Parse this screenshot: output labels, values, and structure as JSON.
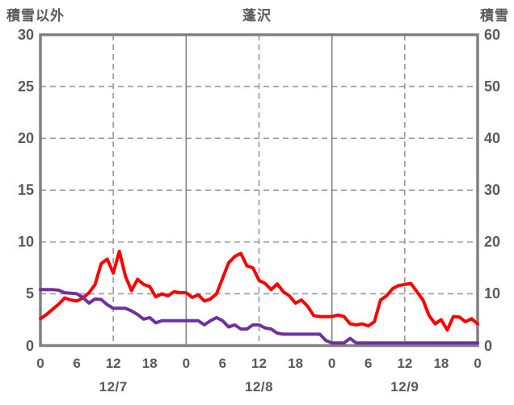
{
  "header": {
    "left_axis_title": "積雪以外",
    "chart_title": "蓬沢",
    "right_axis_title": "積雪"
  },
  "chart_data": {
    "type": "line",
    "title": "蓬沢",
    "left_axis": {
      "label": "積雪以外",
      "min": 0,
      "max": 30,
      "ticks": [
        0,
        5,
        10,
        15,
        20,
        25,
        30
      ]
    },
    "right_axis": {
      "label": "積雪",
      "min": 0,
      "max": 60,
      "ticks": [
        0,
        10,
        20,
        30,
        40,
        50,
        60
      ]
    },
    "x_axis": {
      "unit": "hour",
      "start_hour": 0,
      "end_hour": 72,
      "step_hours": 1,
      "hour_tick_step": 6,
      "hour_tick_labels": [
        "0",
        "6",
        "12",
        "18",
        "0",
        "6",
        "12",
        "18",
        "0",
        "6",
        "12",
        "18",
        "0"
      ],
      "date_labels": [
        {
          "label": "12/7",
          "hour": 12
        },
        {
          "label": "12/8",
          "hour": 36
        },
        {
          "label": "12/9",
          "hour": 60
        }
      ]
    },
    "grid": {
      "horizontal_dashed_left_values": [
        5,
        10,
        15,
        20,
        25
      ],
      "vertical_solid_hours": [
        24,
        48
      ],
      "vertical_dashed_hours": [
        12,
        36,
        60
      ]
    },
    "legend": "none",
    "series": [
      {
        "name": "積雪以外",
        "id": "red-line",
        "color": "#ff0000",
        "axis": "left",
        "values": [
          2.6,
          3.0,
          3.5,
          4.0,
          4.6,
          4.4,
          4.3,
          4.6,
          5.1,
          5.9,
          7.9,
          8.35,
          7.0,
          9.1,
          6.7,
          5.3,
          6.4,
          5.9,
          5.7,
          4.7,
          5.0,
          4.8,
          5.2,
          5.1,
          5.1,
          4.65,
          4.9,
          4.3,
          4.5,
          5.0,
          6.5,
          8.0,
          8.6,
          8.9,
          7.7,
          7.5,
          6.3,
          6.0,
          5.4,
          5.95,
          5.2,
          4.8,
          4.1,
          4.4,
          3.8,
          2.9,
          2.8,
          2.8,
          2.8,
          2.95,
          2.8,
          2.1,
          2.0,
          2.1,
          1.9,
          2.3,
          4.4,
          4.8,
          5.5,
          5.8,
          5.9,
          6.0,
          5.2,
          4.4,
          2.9,
          2.1,
          2.5,
          1.5,
          2.8,
          2.75,
          2.3,
          2.6,
          2.1
        ]
      },
      {
        "name": "積雪",
        "id": "purple-line",
        "color": "#7030a0",
        "axis": "right",
        "values": [
          10.8,
          10.8,
          10.8,
          10.7,
          10.2,
          10.1,
          10.0,
          9.3,
          8.2,
          9.0,
          8.9,
          7.9,
          7.2,
          7.2,
          7.2,
          6.7,
          6.0,
          5.1,
          5.4,
          4.4,
          4.8,
          4.8,
          4.8,
          4.8,
          4.8,
          4.8,
          4.8,
          4.0,
          4.8,
          5.4,
          4.8,
          3.6,
          4.0,
          3.2,
          3.2,
          4.0,
          4.0,
          3.4,
          3.2,
          2.4,
          2.2,
          2.2,
          2.2,
          2.2,
          2.2,
          2.2,
          2.2,
          1.0,
          0.5,
          0.5,
          0.5,
          1.4,
          0.5,
          0.5,
          0.5,
          0.5,
          0.5,
          0.5,
          0.5,
          0.5,
          0.5,
          0.5,
          0.5,
          0.5,
          0.5,
          0.5,
          0.5,
          0.5,
          0.5,
          0.5,
          0.5,
          0.5,
          0.5
        ]
      }
    ],
    "colors": {
      "frame": "#808080",
      "grid_solid": "#808080",
      "grid_dashed": "#999999",
      "text": "#595959",
      "background": "#ffffff"
    }
  }
}
